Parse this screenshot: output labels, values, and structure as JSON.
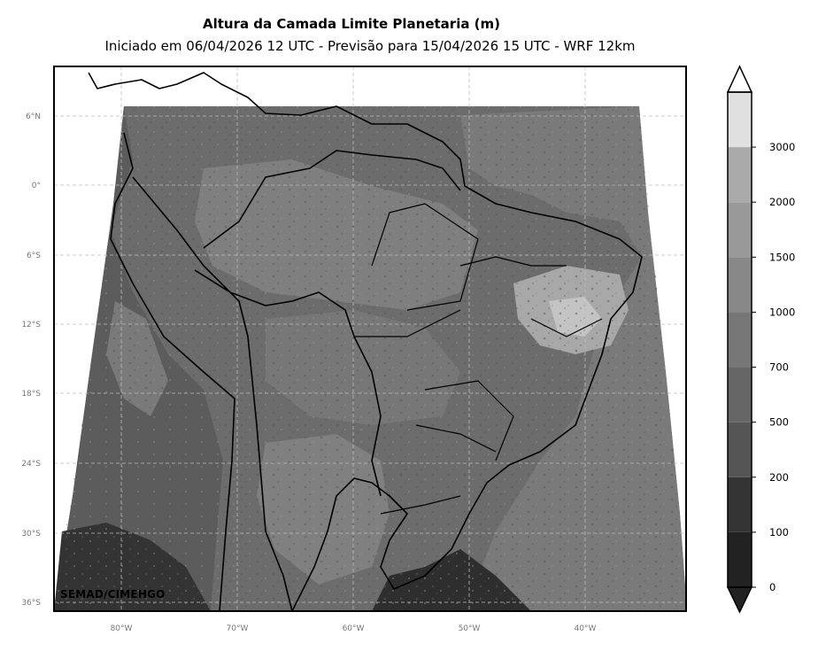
{
  "title": "Altura da Camada Limite Planetaria (m)",
  "subtitle": "Iniciado em 06/04/2026 12 UTC - Previsão para 15/04/2026 15 UTC - WRF 12km",
  "credit": "SEMAD/CIMEHGO",
  "lat_ticks": [
    "6°N",
    "0°",
    "6°S",
    "12°S",
    "18°S",
    "24°S",
    "30°S",
    "36°S"
  ],
  "lon_ticks": [
    "80°W",
    "70°W",
    "60°W",
    "50°W",
    "40°W"
  ],
  "colorbar": {
    "levels": [
      "0",
      "100",
      "200",
      "500",
      "700",
      "1000",
      "1500",
      "2000",
      "3000"
    ],
    "colors": [
      "#222222",
      "#333333",
      "#555555",
      "#666666",
      "#777777",
      "#888888",
      "#999999",
      "#aaaaaa",
      "#e0e0e0"
    ],
    "extend": "both"
  },
  "colors": {
    "ocean_dark": "#3a3a3a",
    "land_mid": "#6f6f6f",
    "land_light": "#8f8f8f",
    "highlight": "#b3b3b3",
    "border": "#000000",
    "grid": "#bbbbbb"
  }
}
